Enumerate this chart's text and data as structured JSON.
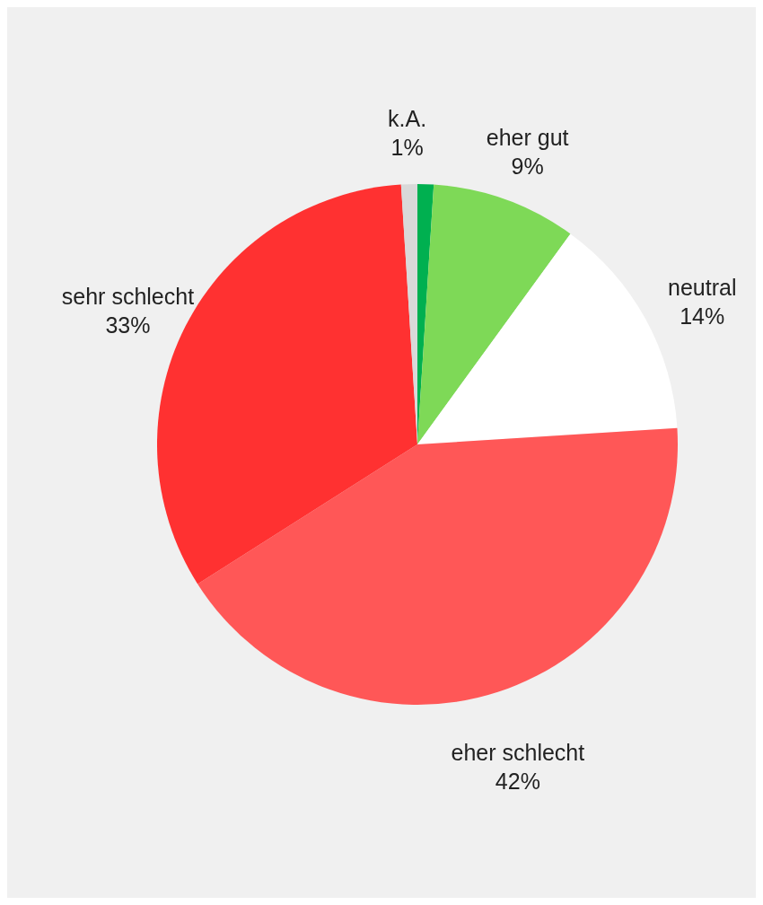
{
  "chart_data": {
    "type": "pie",
    "categories": [
      null,
      "eher gut",
      "neutral",
      "eher schlecht",
      "sehr schlecht",
      "k.A."
    ],
    "values": [
      1,
      9,
      14,
      42,
      33,
      1
    ],
    "value_labels": [
      null,
      "9%",
      "14%",
      "42%",
      "33%",
      "1%"
    ],
    "colors": [
      "#00b050",
      "#7ed957",
      "#ffffff",
      "#ff5757",
      "#ff3131",
      "#d9d9d9"
    ]
  }
}
